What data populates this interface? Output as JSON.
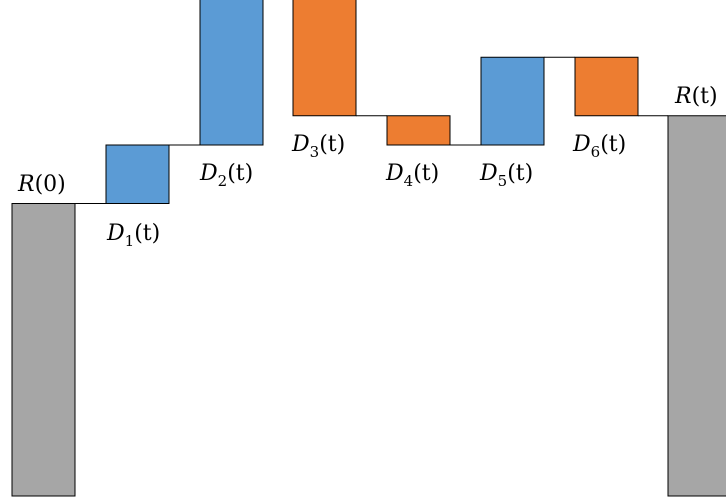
{
  "chart_data": {
    "type": "waterfall",
    "start_label": {
      "var": "R",
      "arg": "(0)"
    },
    "end_label": {
      "var": "R",
      "arg": "(t)"
    },
    "steps": [
      {
        "var": "D",
        "sub": "1",
        "arg": "(t)",
        "direction": "increase",
        "delta": 1.0
      },
      {
        "var": "D",
        "sub": "2",
        "arg": "(t)",
        "direction": "increase",
        "delta": 2.5
      },
      {
        "var": "D",
        "sub": "3",
        "arg": "(t)",
        "direction": "decrease",
        "delta": -2.0
      },
      {
        "var": "D",
        "sub": "4",
        "arg": "(t)",
        "direction": "decrease",
        "delta": -0.5
      },
      {
        "var": "D",
        "sub": "5",
        "arg": "(t)",
        "direction": "increase",
        "delta": 1.5
      },
      {
        "var": "D",
        "sub": "6",
        "arg": "(t)",
        "direction": "decrease",
        "delta": -1.0
      }
    ],
    "start_value": 5.0,
    "end_value": 6.5,
    "colors": {
      "total": "#a6a6a6",
      "increase": "#5b9bd5",
      "decrease": "#ed7d31"
    }
  }
}
